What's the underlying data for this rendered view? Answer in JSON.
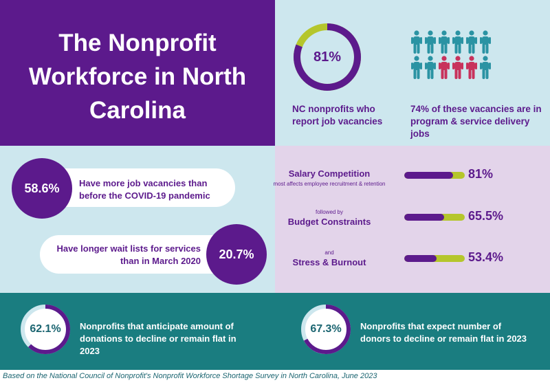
{
  "title": "The Nonprofit Workforce in North Carolina",
  "colors": {
    "purple": "#5c1a8c",
    "lime": "#b5c62c",
    "teal": "#1a7d80",
    "light_blue": "#cde7ee",
    "lavender": "#e3d4ea",
    "person_teal": "#2a93a3",
    "person_red": "#c8325c"
  },
  "vacancies": {
    "percent_label": "81%",
    "percent_value": 81,
    "caption": "NC nonprofits who report job vacancies",
    "people_icon": "person-icon",
    "people_total": 12,
    "people_highlighted": 3,
    "program_caption": "74% of these vacancies are in program & service delivery jobs"
  },
  "pills": [
    {
      "value": "58.6%",
      "text": "Have more job vacancies than before the COVID-19 pandemic"
    },
    {
      "value": "20.7%",
      "text": "Have longer wait lists for services than in March 2020"
    }
  ],
  "factors": [
    {
      "prefix": "",
      "name": "Salary Competition",
      "suffix": "most affects employee recruitment & retention",
      "value_label": "81%",
      "value": 81
    },
    {
      "prefix": "followed by",
      "name": "Budget Constraints",
      "suffix": "",
      "value_label": "65.5%",
      "value": 65.5
    },
    {
      "prefix": "and",
      "name": "Stress & Burnout",
      "suffix": "",
      "value_label": "53.4%",
      "value": 53.4
    }
  ],
  "donations": [
    {
      "value_label": "62.1%",
      "value": 62.1,
      "text": "Nonprofits that anticipate amount of donations to decline or remain flat in 2023"
    },
    {
      "value_label": "67.3%",
      "value": 67.3,
      "text": "Nonprofits that expect number of donors to decline or remain flat in 2023"
    }
  ],
  "footer": "Based on the National Council of Nonprofit's Nonprofit Workforce Shortage Survey in North Carolina, June 2023"
}
